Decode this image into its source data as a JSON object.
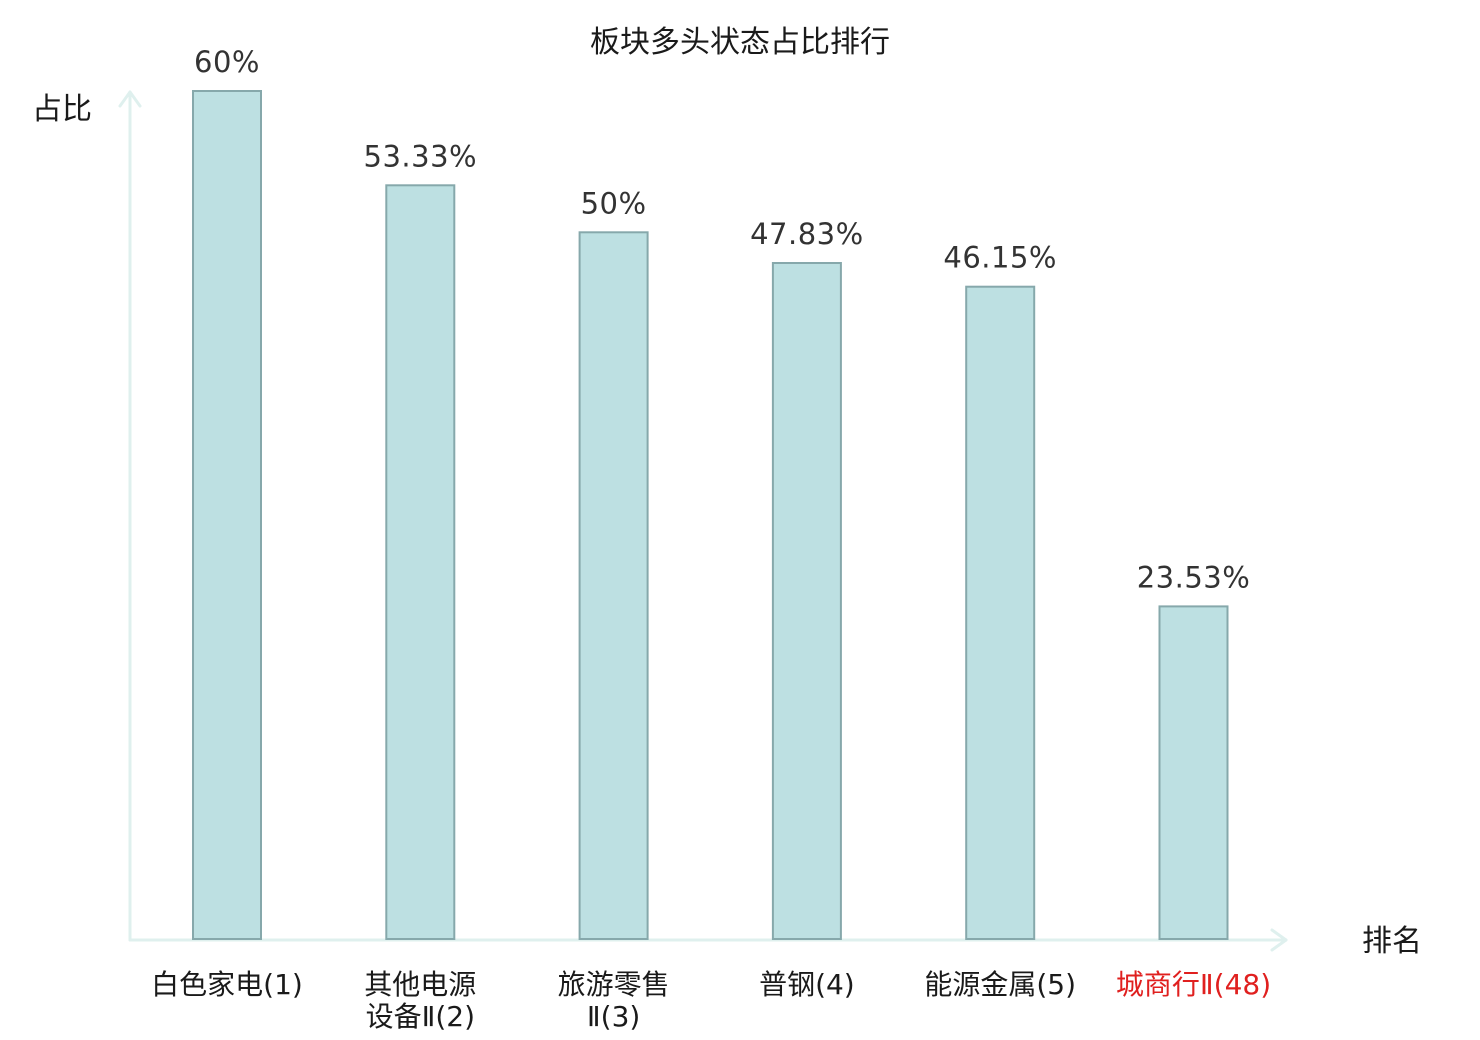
{
  "chart_data": {
    "type": "bar",
    "title": "板块多头状态占比排行",
    "xlabel": "排名",
    "ylabel": "占比",
    "ylim": [
      0,
      60
    ],
    "categories": [
      {
        "lines": [
          "白色家电",
          "(1)"
        ],
        "layout": "inline",
        "highlight": false
      },
      {
        "lines": [
          "其他电源",
          "设备Ⅱ(2)"
        ],
        "layout": "stacked",
        "highlight": false
      },
      {
        "lines": [
          "旅游零售",
          "Ⅱ(3)"
        ],
        "layout": "stacked",
        "highlight": false
      },
      {
        "lines": [
          "普钢",
          "(4)"
        ],
        "layout": "inline",
        "highlight": false
      },
      {
        "lines": [
          "能源金属",
          "(5)"
        ],
        "layout": "inline",
        "highlight": false
      },
      {
        "lines": [
          "城商行Ⅱ",
          "(48)"
        ],
        "layout": "inline",
        "highlight": true
      }
    ],
    "values": [
      60,
      53.33,
      50,
      47.83,
      46.15,
      23.53
    ],
    "value_labels": [
      "60%",
      "53.33%",
      "50%",
      "47.83%",
      "46.15%",
      "23.53%"
    ],
    "grid": false,
    "legend": "none"
  },
  "colors": {
    "bar_fill": "#bde0e2",
    "bar_stroke": "#86a8ab",
    "axis": "#dff0ee",
    "text": "#1a1a1a",
    "value_text": "#333333",
    "highlight_text": "#e0201f"
  }
}
